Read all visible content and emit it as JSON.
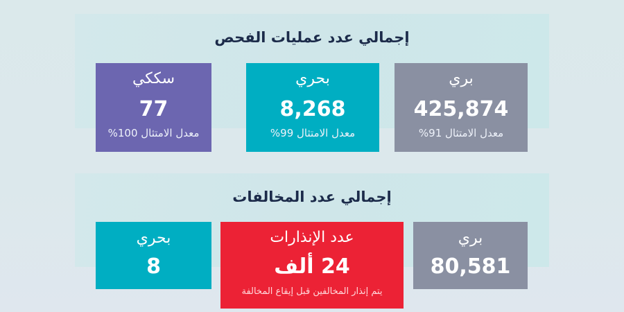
{
  "colors": {
    "background": "#dce8ec",
    "panel": "#d1e7ea",
    "title_text": "#1c2b4a",
    "rail": "#6c66b0",
    "sea": "#00aec2",
    "land": "#8a90a2",
    "warnings": "#ec2235"
  },
  "inspections": {
    "title": "إجمالي عدد عمليات الفحص",
    "cards": [
      {
        "label": "بري",
        "value": "425,874",
        "subtitle": "معدل الامتثال 91%"
      },
      {
        "label": "بحري",
        "value": "8,268",
        "subtitle": "معدل الامتثال 99%"
      },
      {
        "label": "سككي",
        "value": "77",
        "subtitle": "معدل الامتثال 100%"
      }
    ]
  },
  "violations": {
    "title": "إجمالي عدد المخالفات",
    "cards": [
      {
        "label": "بري",
        "value": "80,581"
      },
      {
        "label": "عدد الإنذارات",
        "value": "24 ألف",
        "subtitle": "يتم إنذار المخالفين قبل إيقاع المخالفة"
      },
      {
        "label": "بحري",
        "value": "8"
      }
    ]
  }
}
